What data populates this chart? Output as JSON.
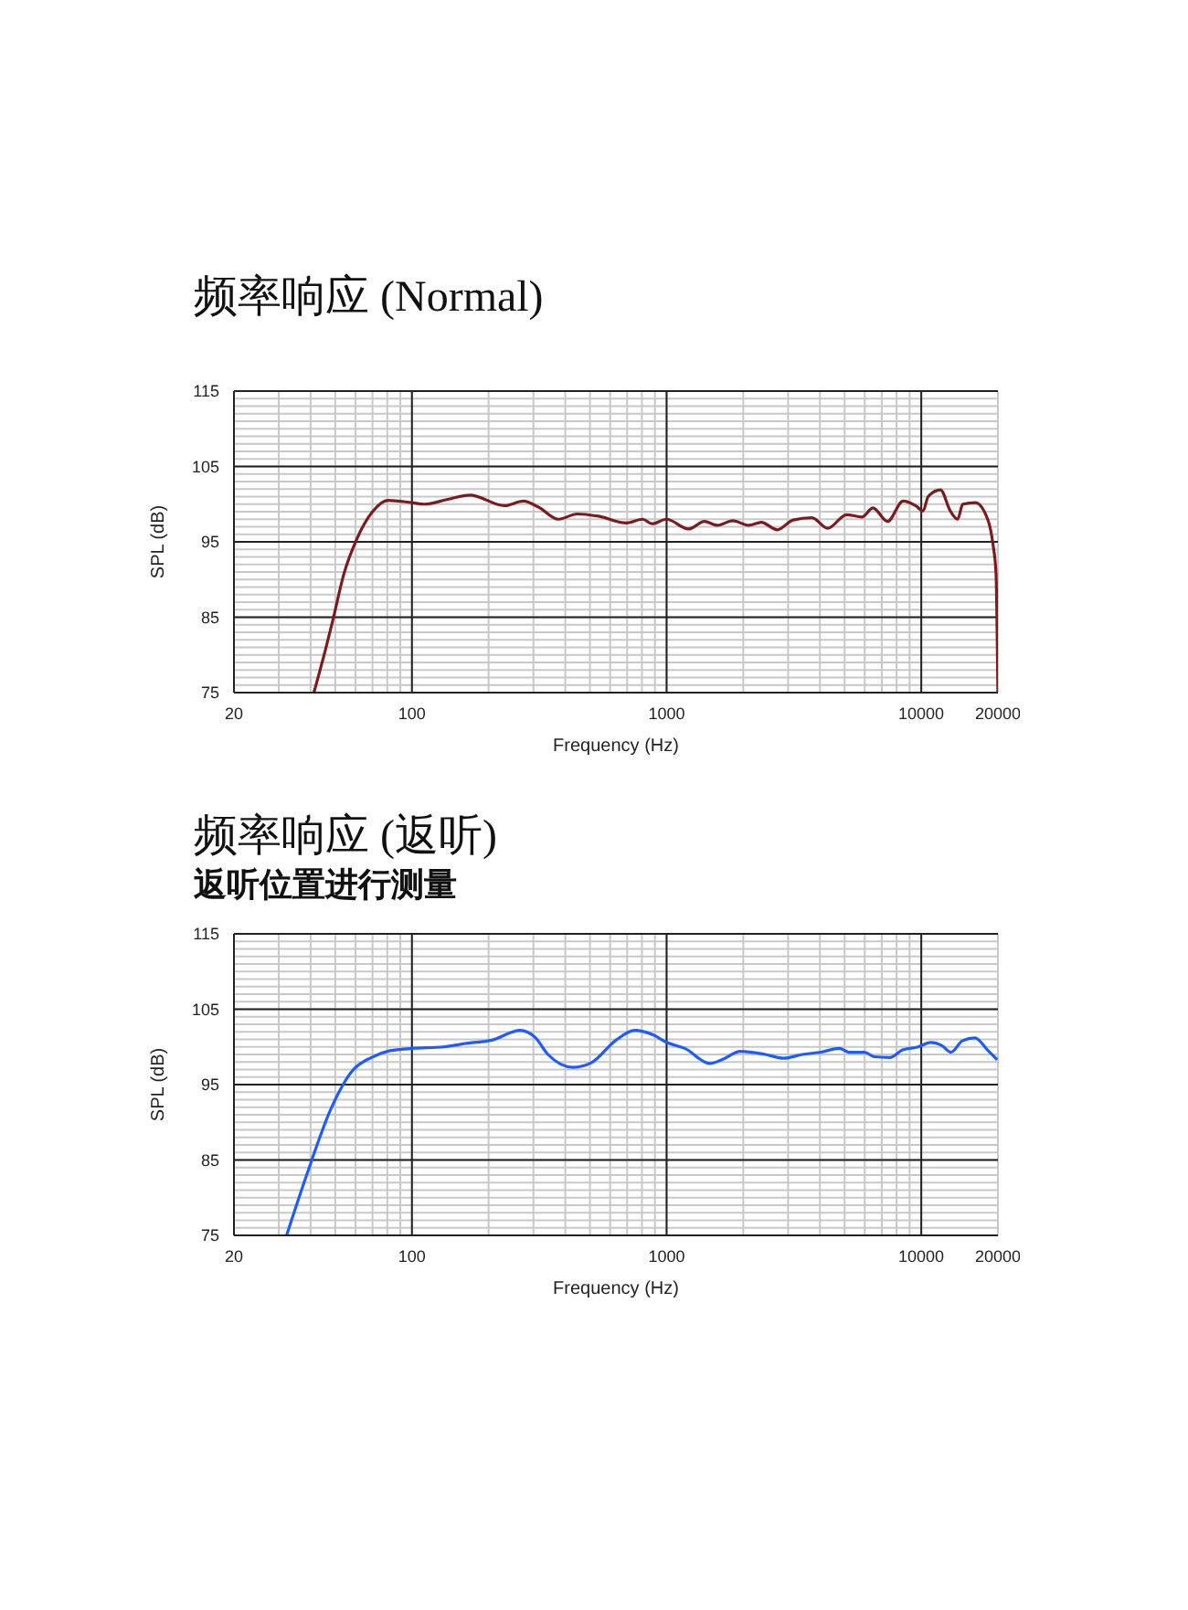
{
  "chart_data": [
    {
      "type": "line",
      "title": "频率响应 (Normal)",
      "xlabel": "Frequency  (Hz)",
      "ylabel": "SPL  (dB)",
      "log": "x",
      "grid": true,
      "xlim": [
        20,
        20000
      ],
      "ylim": [
        75,
        115
      ],
      "xticks": [
        20,
        100,
        1000,
        10000,
        20000
      ],
      "yticks": [
        75,
        85,
        95,
        105,
        115
      ],
      "x": [
        41.2,
        45.6,
        48.9,
        54.1,
        60.6,
        70,
        80.6,
        100,
        112,
        137,
        169,
        231,
        274,
        314,
        376,
        445,
        540,
        697,
        805,
        877,
        1000,
        1219,
        1406,
        1581,
        1820,
        2100,
        2355,
        2718,
        3138,
        3720,
        4290,
        5090,
        5860,
        6460,
        7370,
        8490,
        9500,
        10170,
        10640,
        11900,
        13000,
        13900,
        14550,
        16290,
        18270,
        19100,
        19660,
        19990
      ],
      "series": [
        {
          "color": "#7b1b1e",
          "values": [
            75,
            80.5,
            84.6,
            90.8,
            95.3,
            99,
            100.5,
            100.2,
            100,
            100.6,
            101.2,
            99.8,
            100.4,
            99.6,
            98,
            98.7,
            98.4,
            97.5,
            98,
            97.4,
            98,
            96.7,
            97.7,
            97.2,
            97.8,
            97.2,
            97.6,
            96.6,
            97.9,
            98.2,
            96.8,
            98.6,
            98.3,
            99.5,
            97.7,
            100.4,
            99.8,
            99.1,
            101,
            101.9,
            99.1,
            98,
            100,
            100.2,
            97.9,
            94.8,
            90.8,
            75
          ]
        }
      ]
    },
    {
      "type": "line",
      "title": "频率响应 (返听)",
      "subtitle": "返听位置进行测量",
      "xlabel": "Frequency (Hz)",
      "ylabel": "SPL (dB)",
      "log": "x",
      "grid": true,
      "xlim": [
        20,
        20000
      ],
      "ylim": [
        75,
        115
      ],
      "xticks": [
        20,
        100,
        1000,
        10000,
        20000
      ],
      "yticks": [
        75,
        85,
        95,
        105,
        115
      ],
      "x": [
        32.2,
        38.5,
        48.1,
        58.6,
        69.3,
        82,
        100,
        132.8,
        166,
        206,
        266,
        306,
        342,
        429,
        506,
        633,
        749,
        885,
        1000,
        1180,
        1476,
        1650,
        1950,
        2440,
        2885,
        3410,
        4030,
        4775,
        5190,
        5990,
        6530,
        7530,
        8440,
        9720,
        10910,
        12020,
        13100,
        14490,
        16240,
        18200,
        19870
      ],
      "series": [
        {
          "color": "#1f5cff",
          "values": [
            75,
            82.9,
            91.8,
            96.9,
            98.6,
            99.5,
            99.8,
            100,
            100.5,
            100.9,
            102.2,
            101.2,
            99,
            97.3,
            97.9,
            100.9,
            102.2,
            101.6,
            100.6,
            99.8,
            97.8,
            98.3,
            99.4,
            99,
            98.5,
            99,
            99.3,
            99.8,
            99.3,
            99.3,
            98.7,
            98.6,
            99.6,
            100,
            100.6,
            100.2,
            99.3,
            100.8,
            101.2,
            99.6,
            98.3
          ]
        }
      ]
    }
  ]
}
